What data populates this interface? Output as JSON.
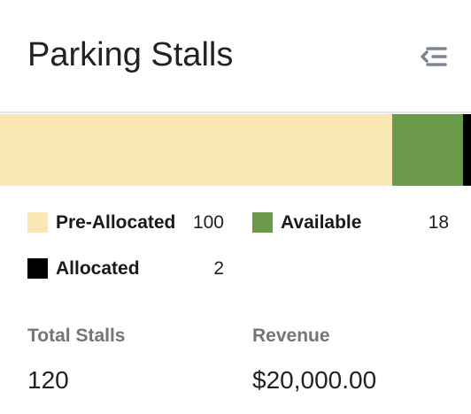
{
  "header": {
    "title": "Parking Stalls",
    "menu_icon": "collapse-menu-icon"
  },
  "stalls": {
    "segments": [
      {
        "name": "Pre-Allocated",
        "value": 100,
        "color": "#fbe7b3"
      },
      {
        "name": "Available",
        "value": 18,
        "color": "#6a9a4a"
      },
      {
        "name": "Allocated",
        "value": 2,
        "color": "#000000"
      }
    ]
  },
  "legend": {
    "pre_allocated": {
      "label": "Pre-Allocated",
      "value": "100"
    },
    "available": {
      "label": "Available",
      "value": "18"
    },
    "allocated": {
      "label": "Allocated",
      "value": "2"
    }
  },
  "stats": {
    "total_label": "Total Stalls",
    "total_value": "120",
    "revenue_label": "Revenue",
    "revenue_value": "$20,000.00"
  }
}
